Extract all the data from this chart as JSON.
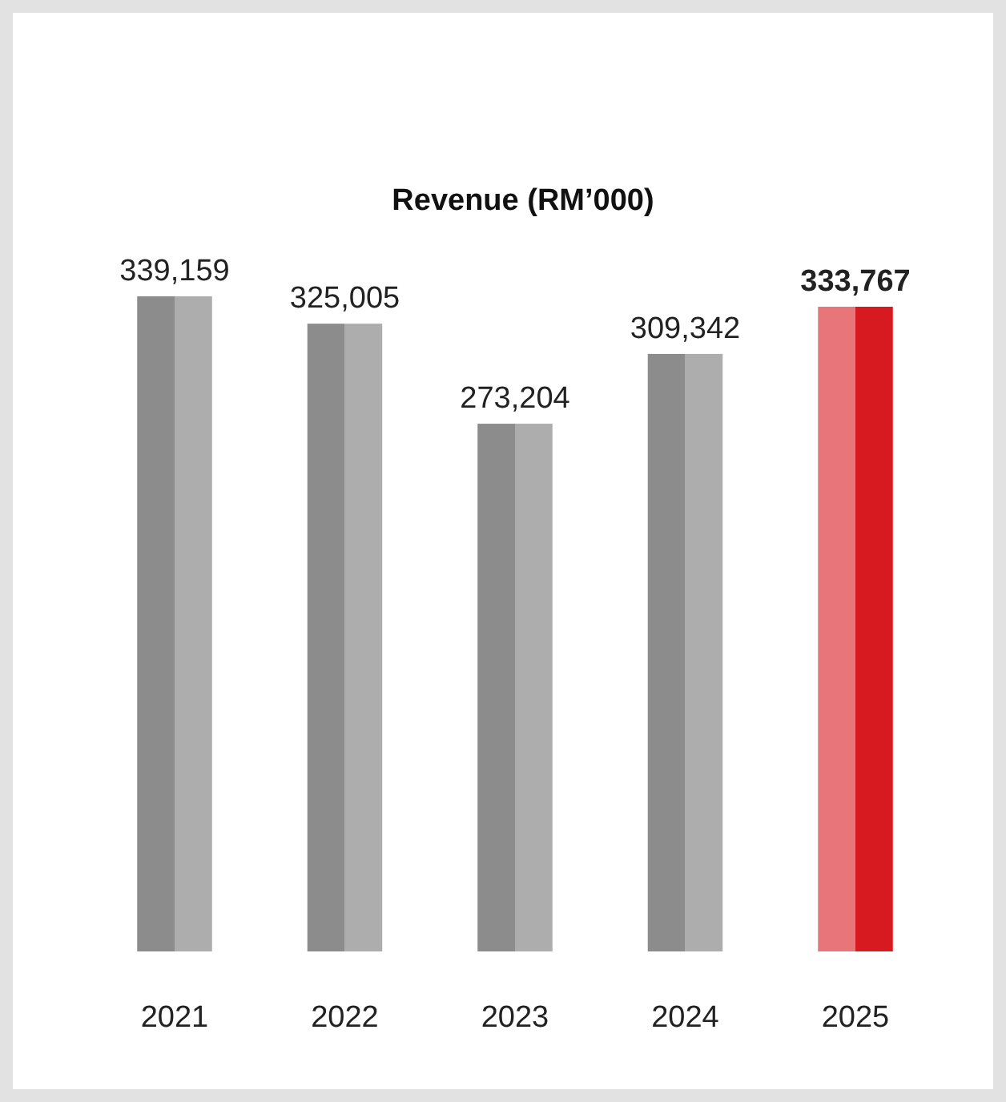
{
  "chart_data": {
    "type": "bar",
    "title": "Revenue (RM’000)",
    "categories": [
      "2021",
      "2022",
      "2023",
      "2024",
      "2025"
    ],
    "values": [
      339159,
      325005,
      273204,
      309342,
      333767
    ],
    "colors": [
      "#adadad",
      "#adadad",
      "#adadad",
      "#adadad",
      "#d71920"
    ],
    "value_labels": [
      "339,159",
      "325,005",
      "273,204",
      "309,342",
      "333,767"
    ]
  }
}
